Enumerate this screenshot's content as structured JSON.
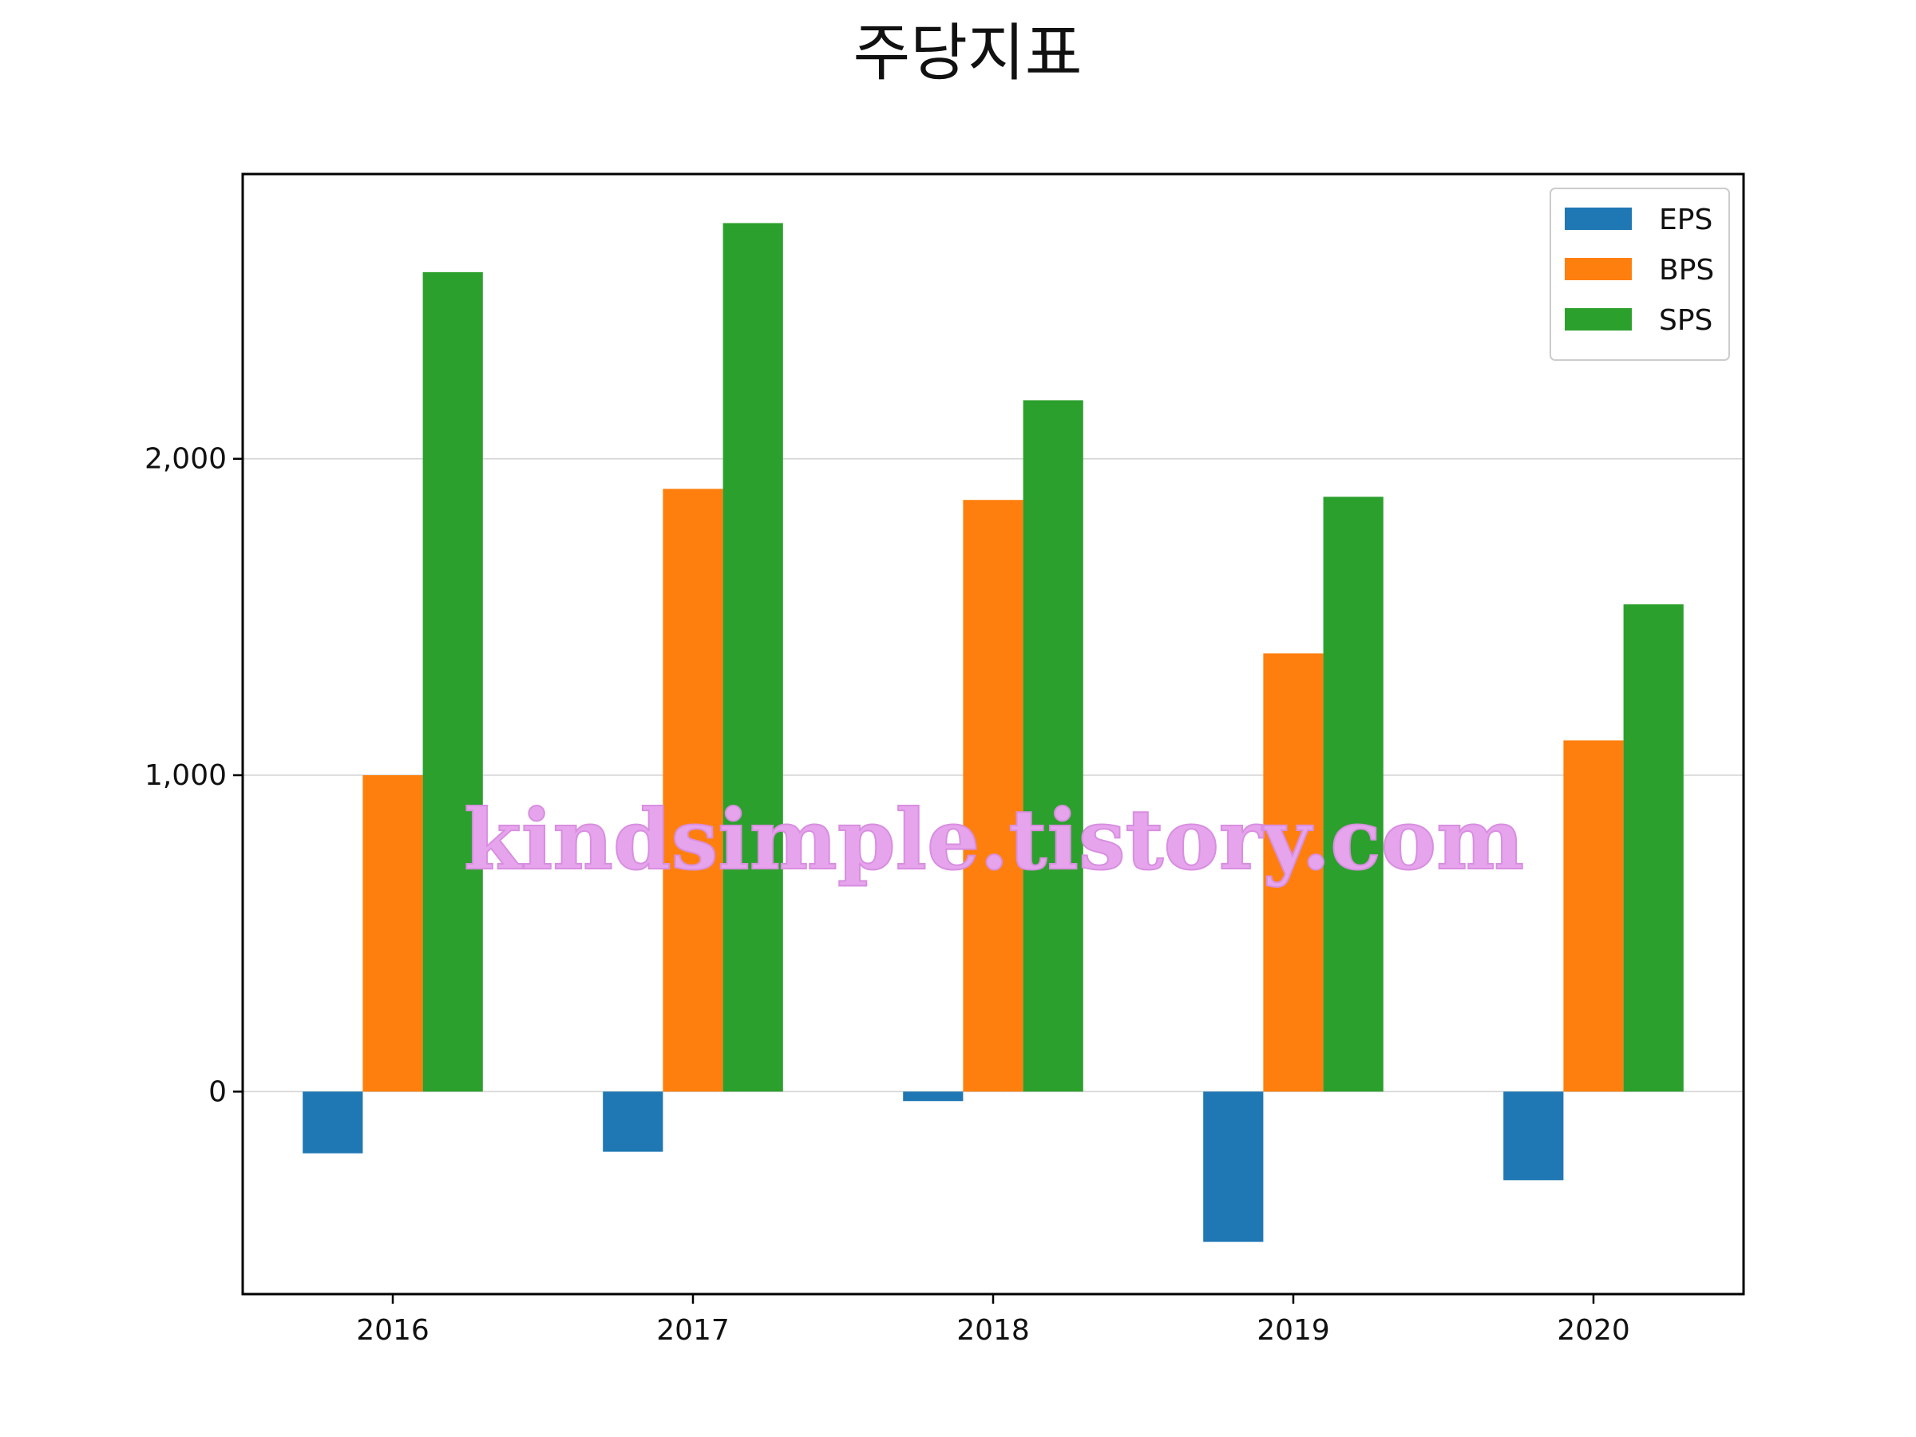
{
  "chart_data": {
    "type": "bar",
    "title": "주당지표",
    "xlabel": "",
    "ylabel": "",
    "categories": [
      "2016",
      "2017",
      "2018",
      "2019",
      "2020"
    ],
    "series": [
      {
        "name": "EPS",
        "color": "#1f77b4",
        "values": [
          -195,
          -190,
          -30,
          -475,
          -280
        ]
      },
      {
        "name": "BPS",
        "color": "#ff7f0e",
        "values": [
          1000,
          1905,
          1870,
          1385,
          1110
        ]
      },
      {
        "name": "SPS",
        "color": "#2ca02c",
        "values": [
          2590,
          2745,
          2185,
          1880,
          1540
        ]
      }
    ],
    "ylim": [
      -640,
      2900
    ],
    "yticks": [
      0,
      1000,
      2000
    ],
    "ytick_labels": [
      "0",
      "1,000",
      "2,000"
    ],
    "grid": "horizontal",
    "legend_position": "top-right"
  },
  "watermark": "kindsimple.tistory.com"
}
